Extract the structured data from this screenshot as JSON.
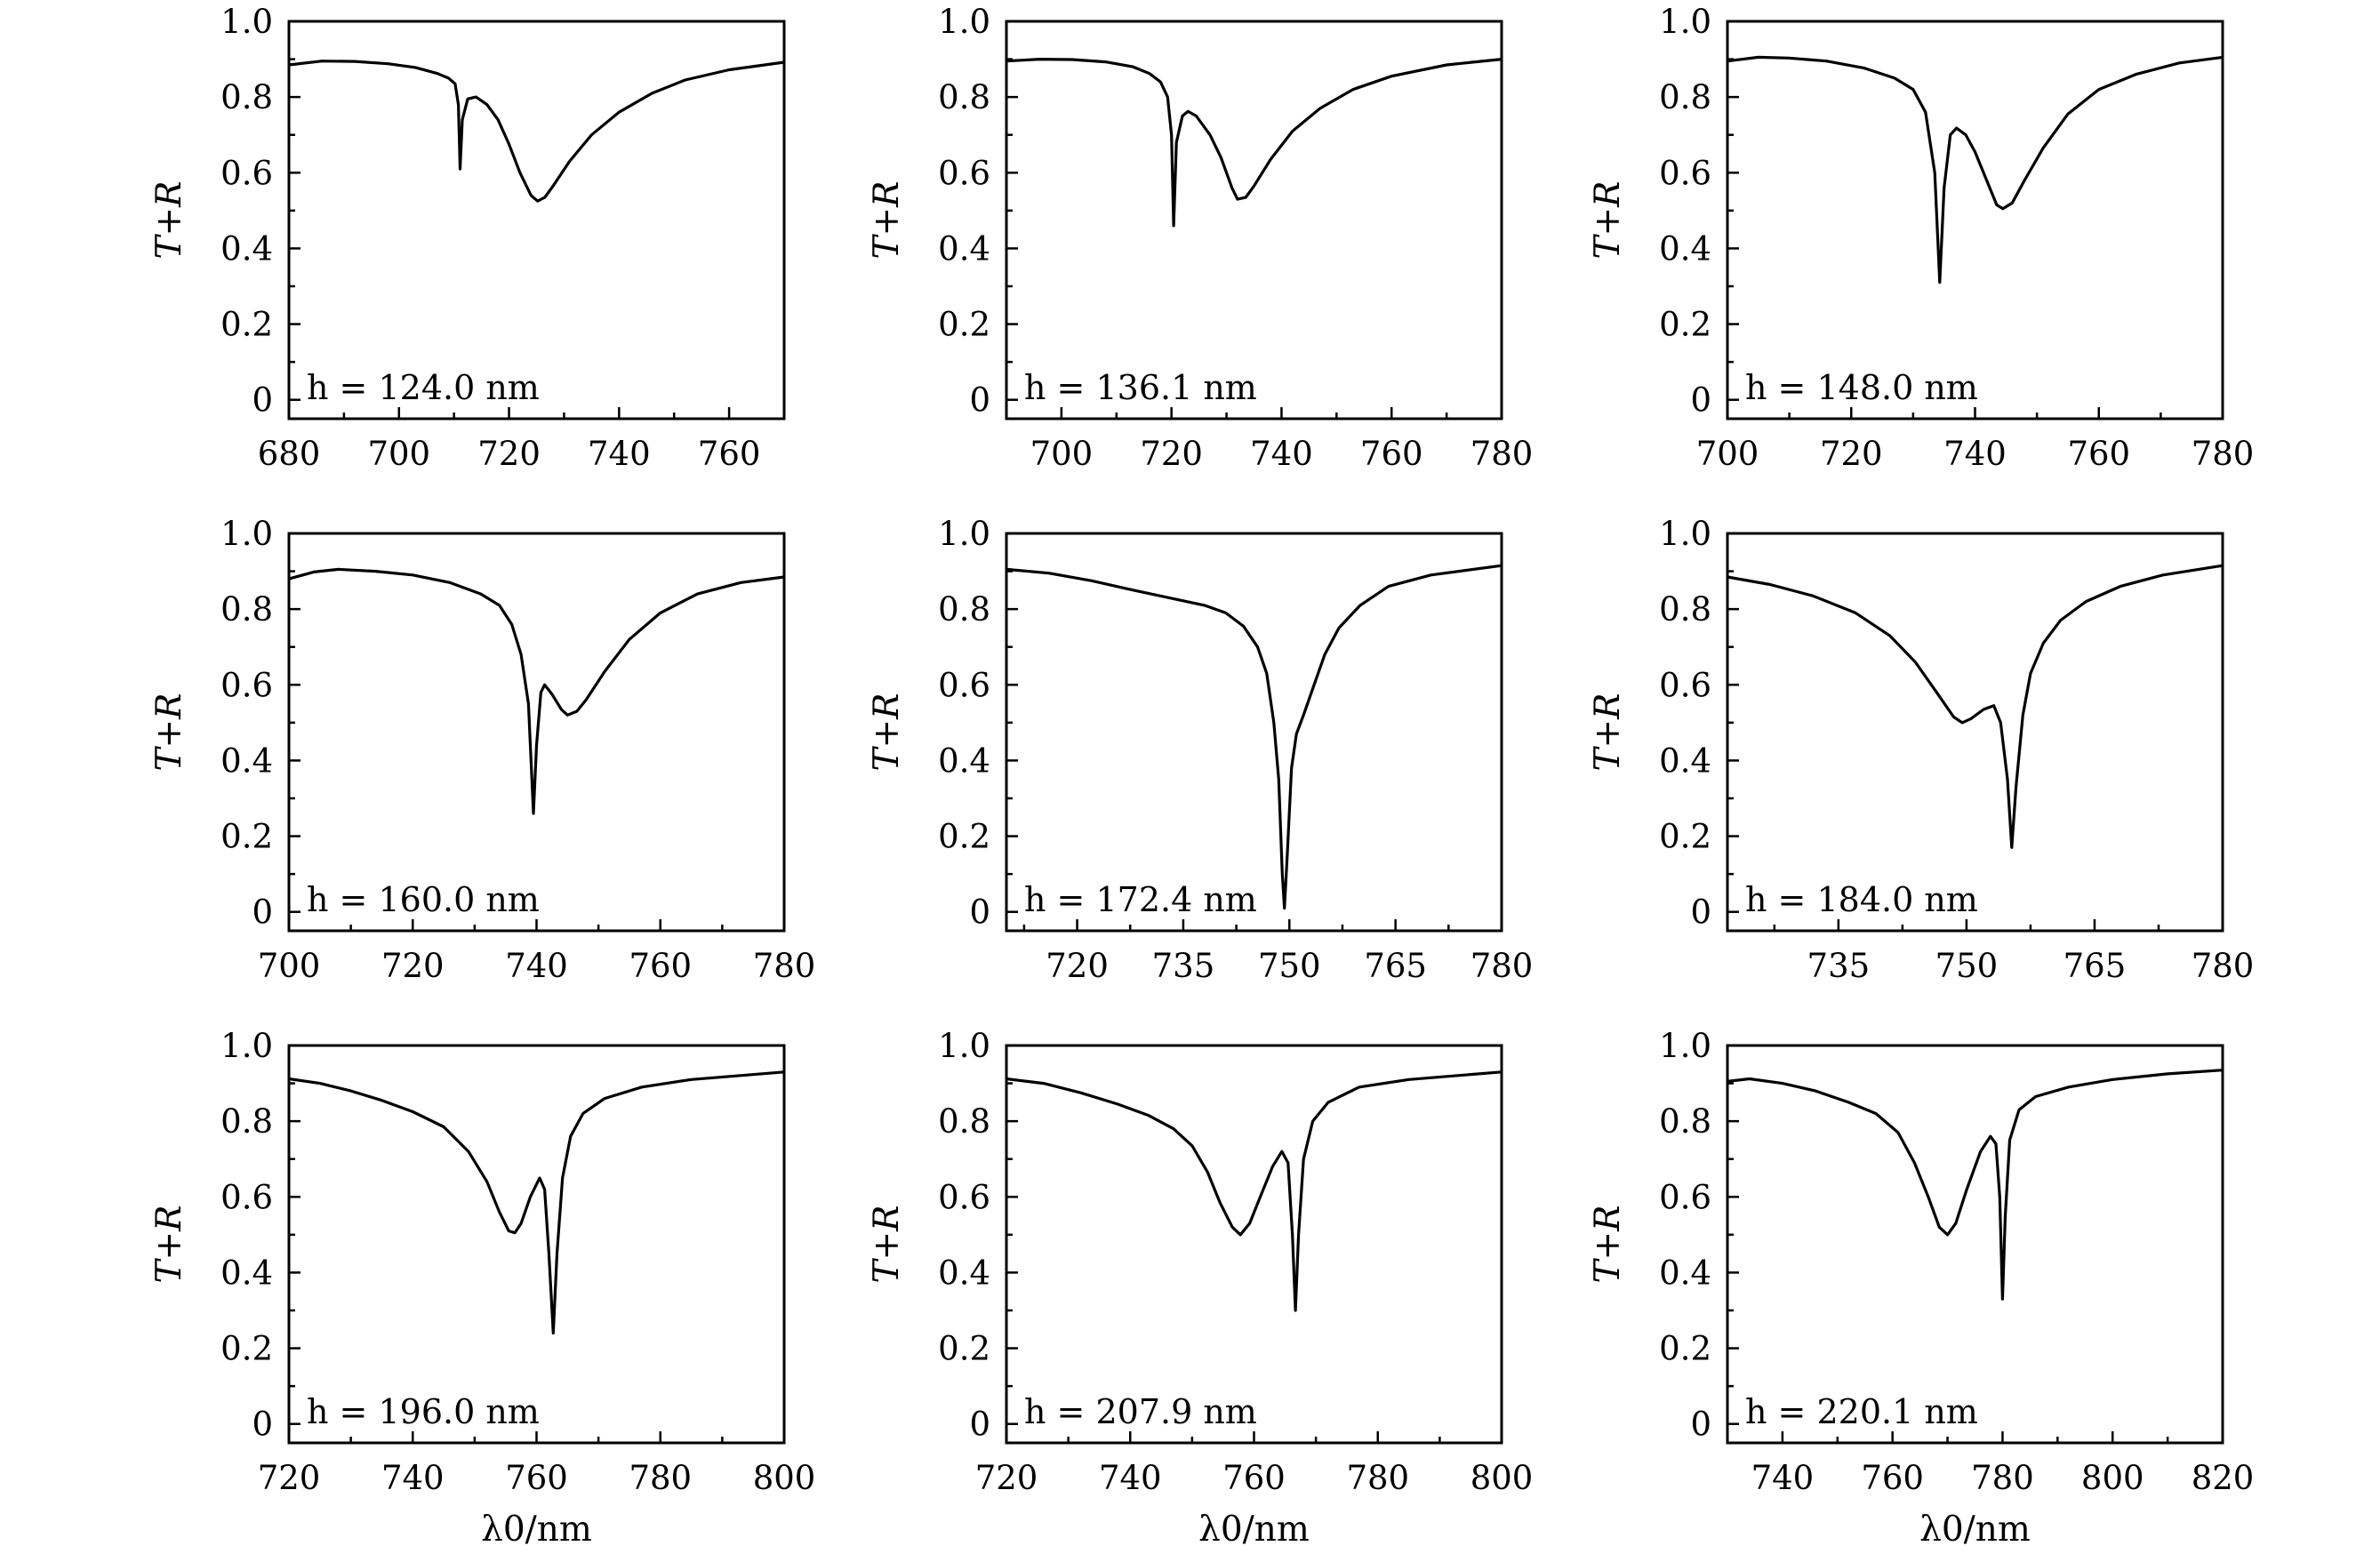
{
  "chart_data": [
    {
      "type": "line",
      "annotation": "h = 124.0 nm",
      "ylabel": "T+R",
      "xlabel": "",
      "xlim": [
        680,
        770
      ],
      "ylim": [
        -0.05,
        1.0
      ],
      "xticks": [
        680,
        700,
        720,
        740,
        760
      ],
      "yticks": [
        0,
        0.2,
        0.4,
        0.6,
        0.8,
        1.0
      ],
      "ytick_labels": [
        "0",
        "0.2",
        "0.4",
        "0.6",
        "0.8",
        "1.0"
      ],
      "points": [
        [
          680,
          0.885
        ],
        [
          686,
          0.895
        ],
        [
          692,
          0.894
        ],
        [
          698,
          0.888
        ],
        [
          703,
          0.878
        ],
        [
          707,
          0.862
        ],
        [
          709,
          0.85
        ],
        [
          710.2,
          0.835
        ],
        [
          710.8,
          0.78
        ],
        [
          711.1,
          0.61
        ],
        [
          711.5,
          0.74
        ],
        [
          712.5,
          0.795
        ],
        [
          714,
          0.8
        ],
        [
          716,
          0.78
        ],
        [
          718,
          0.74
        ],
        [
          720,
          0.675
        ],
        [
          722,
          0.6
        ],
        [
          724,
          0.54
        ],
        [
          725.2,
          0.525
        ],
        [
          726.5,
          0.535
        ],
        [
          728,
          0.565
        ],
        [
          731,
          0.63
        ],
        [
          735,
          0.7
        ],
        [
          740,
          0.76
        ],
        [
          746,
          0.81
        ],
        [
          752,
          0.845
        ],
        [
          760,
          0.872
        ],
        [
          770,
          0.892
        ]
      ]
    },
    {
      "type": "line",
      "annotation": "h = 136.1 nm",
      "ylabel": "T+R",
      "xlabel": "",
      "xlim": [
        690,
        780
      ],
      "ylim": [
        -0.05,
        1.0
      ],
      "xticks": [
        700,
        720,
        740,
        760,
        780
      ],
      "yticks": [
        0,
        0.2,
        0.4,
        0.6,
        0.8,
        1.0
      ],
      "ytick_labels": [
        "0",
        "0.2",
        "0.4",
        "0.6",
        "0.8",
        "1.0"
      ],
      "points": [
        [
          690,
          0.895
        ],
        [
          696,
          0.9
        ],
        [
          702,
          0.899
        ],
        [
          708,
          0.893
        ],
        [
          713,
          0.88
        ],
        [
          716,
          0.862
        ],
        [
          718,
          0.84
        ],
        [
          719.3,
          0.8
        ],
        [
          720,
          0.7
        ],
        [
          720.4,
          0.46
        ],
        [
          720.9,
          0.68
        ],
        [
          722,
          0.75
        ],
        [
          723,
          0.762
        ],
        [
          724.5,
          0.75
        ],
        [
          727,
          0.7
        ],
        [
          729,
          0.64
        ],
        [
          731,
          0.56
        ],
        [
          732,
          0.53
        ],
        [
          733.5,
          0.535
        ],
        [
          735,
          0.565
        ],
        [
          738,
          0.635
        ],
        [
          742,
          0.71
        ],
        [
          747,
          0.77
        ],
        [
          753,
          0.82
        ],
        [
          760,
          0.855
        ],
        [
          770,
          0.885
        ],
        [
          780,
          0.9
        ]
      ]
    },
    {
      "type": "line",
      "annotation": "h = 148.0 nm",
      "ylabel": "T+R",
      "xlabel": "",
      "xlim": [
        700,
        780
      ],
      "ylim": [
        -0.05,
        1.0
      ],
      "xticks": [
        700,
        720,
        740,
        760,
        780
      ],
      "yticks": [
        0,
        0.2,
        0.4,
        0.6,
        0.8,
        1.0
      ],
      "ytick_labels": [
        "0",
        "0.2",
        "0.4",
        "0.6",
        "0.8",
        "1.0"
      ],
      "points": [
        [
          700,
          0.895
        ],
        [
          705,
          0.905
        ],
        [
          710,
          0.903
        ],
        [
          716,
          0.895
        ],
        [
          722,
          0.877
        ],
        [
          727,
          0.85
        ],
        [
          730,
          0.82
        ],
        [
          732,
          0.76
        ],
        [
          733.5,
          0.6
        ],
        [
          734.3,
          0.31
        ],
        [
          735,
          0.56
        ],
        [
          736,
          0.7
        ],
        [
          737,
          0.718
        ],
        [
          738.5,
          0.7
        ],
        [
          740,
          0.655
        ],
        [
          742,
          0.575
        ],
        [
          743.5,
          0.515
        ],
        [
          744.5,
          0.505
        ],
        [
          746,
          0.52
        ],
        [
          748,
          0.58
        ],
        [
          751,
          0.665
        ],
        [
          755,
          0.755
        ],
        [
          760,
          0.82
        ],
        [
          766,
          0.86
        ],
        [
          773,
          0.89
        ],
        [
          780,
          0.905
        ]
      ]
    },
    {
      "type": "line",
      "annotation": "h = 160.0 nm",
      "ylabel": "T+R",
      "xlabel": "",
      "xlim": [
        700,
        780
      ],
      "ylim": [
        -0.05,
        1.0
      ],
      "xticks": [
        700,
        720,
        740,
        760,
        780
      ],
      "yticks": [
        0,
        0.2,
        0.4,
        0.6,
        0.8,
        1.0
      ],
      "ytick_labels": [
        "0",
        "0.2",
        "0.4",
        "0.6",
        "0.8",
        "1.0"
      ],
      "points": [
        [
          700,
          0.88
        ],
        [
          704,
          0.898
        ],
        [
          708,
          0.905
        ],
        [
          714,
          0.9
        ],
        [
          720,
          0.89
        ],
        [
          726,
          0.87
        ],
        [
          731,
          0.84
        ],
        [
          734,
          0.81
        ],
        [
          736,
          0.76
        ],
        [
          737.5,
          0.68
        ],
        [
          738.7,
          0.55
        ],
        [
          739.5,
          0.26
        ],
        [
          740,
          0.44
        ],
        [
          740.7,
          0.58
        ],
        [
          741.3,
          0.6
        ],
        [
          742.5,
          0.575
        ],
        [
          744,
          0.535
        ],
        [
          745,
          0.52
        ],
        [
          746.5,
          0.53
        ],
        [
          748,
          0.56
        ],
        [
          751,
          0.635
        ],
        [
          755,
          0.72
        ],
        [
          760,
          0.79
        ],
        [
          766,
          0.84
        ],
        [
          773,
          0.87
        ],
        [
          780,
          0.885
        ]
      ]
    },
    {
      "type": "line",
      "annotation": "h = 172.4 nm",
      "ylabel": "T+R",
      "xlabel": "",
      "xlim": [
        710,
        780
      ],
      "ylim": [
        -0.05,
        1.0
      ],
      "xticks": [
        720,
        735,
        750,
        765,
        780
      ],
      "yticks": [
        0,
        0.2,
        0.4,
        0.6,
        0.8,
        1.0
      ],
      "ytick_labels": [
        "0",
        "0.2",
        "0.4",
        "0.6",
        "0.8",
        "1.0"
      ],
      "points": [
        [
          710,
          0.905
        ],
        [
          716,
          0.895
        ],
        [
          722,
          0.875
        ],
        [
          728,
          0.85
        ],
        [
          733,
          0.83
        ],
        [
          738,
          0.81
        ],
        [
          741,
          0.79
        ],
        [
          743.5,
          0.755
        ],
        [
          745.5,
          0.7
        ],
        [
          746.8,
          0.63
        ],
        [
          747.8,
          0.5
        ],
        [
          748.5,
          0.35
        ],
        [
          749,
          0.1
        ],
        [
          749.3,
          0.01
        ],
        [
          749.7,
          0.15
        ],
        [
          750.3,
          0.38
        ],
        [
          751,
          0.47
        ],
        [
          752,
          0.52
        ],
        [
          753.5,
          0.6
        ],
        [
          755,
          0.68
        ],
        [
          757,
          0.75
        ],
        [
          760,
          0.81
        ],
        [
          764,
          0.86
        ],
        [
          770,
          0.89
        ],
        [
          780,
          0.915
        ]
      ]
    },
    {
      "type": "line",
      "annotation": "h = 184.0 nm",
      "ylabel": "T+R",
      "xlabel": "",
      "xlim": [
        722,
        780
      ],
      "ylim": [
        -0.05,
        1.0
      ],
      "xticks": [
        735,
        750,
        765,
        780
      ],
      "yticks": [
        0,
        0.2,
        0.4,
        0.6,
        0.8,
        1.0
      ],
      "ytick_labels": [
        "0",
        "0.2",
        "0.4",
        "0.6",
        "0.8",
        "1.0"
      ],
      "points": [
        [
          722,
          0.885
        ],
        [
          727,
          0.865
        ],
        [
          732,
          0.835
        ],
        [
          737,
          0.79
        ],
        [
          741,
          0.73
        ],
        [
          744,
          0.66
        ],
        [
          746.5,
          0.58
        ],
        [
          748.5,
          0.515
        ],
        [
          749.5,
          0.5
        ],
        [
          750.5,
          0.51
        ],
        [
          752,
          0.535
        ],
        [
          753.2,
          0.545
        ],
        [
          754,
          0.5
        ],
        [
          754.8,
          0.35
        ],
        [
          755.3,
          0.17
        ],
        [
          755.8,
          0.33
        ],
        [
          756.6,
          0.52
        ],
        [
          757.5,
          0.63
        ],
        [
          759,
          0.71
        ],
        [
          761,
          0.77
        ],
        [
          764,
          0.82
        ],
        [
          768,
          0.86
        ],
        [
          773,
          0.89
        ],
        [
          780,
          0.915
        ]
      ]
    },
    {
      "type": "line",
      "annotation": "h = 196.0 nm",
      "ylabel": "T+R",
      "xlabel": "λ0/nm",
      "xlim": [
        720,
        800
      ],
      "ylim": [
        -0.05,
        1.0
      ],
      "xticks": [
        720,
        740,
        760,
        780,
        800
      ],
      "yticks": [
        0,
        0.2,
        0.4,
        0.6,
        0.8,
        1.0
      ],
      "ytick_labels": [
        "0",
        "0.2",
        "0.4",
        "0.6",
        "0.8",
        "1.0"
      ],
      "points": [
        [
          720,
          0.912
        ],
        [
          725,
          0.9
        ],
        [
          730,
          0.88
        ],
        [
          735,
          0.855
        ],
        [
          740,
          0.825
        ],
        [
          745,
          0.785
        ],
        [
          749,
          0.72
        ],
        [
          752,
          0.64
        ],
        [
          754,
          0.56
        ],
        [
          755.5,
          0.51
        ],
        [
          756.5,
          0.505
        ],
        [
          757.5,
          0.53
        ],
        [
          759,
          0.6
        ],
        [
          760.5,
          0.65
        ],
        [
          761.3,
          0.62
        ],
        [
          762,
          0.45
        ],
        [
          762.7,
          0.24
        ],
        [
          763.3,
          0.45
        ],
        [
          764.2,
          0.65
        ],
        [
          765.5,
          0.76
        ],
        [
          767.5,
          0.82
        ],
        [
          771,
          0.86
        ],
        [
          777,
          0.89
        ],
        [
          785,
          0.91
        ],
        [
          800,
          0.93
        ]
      ]
    },
    {
      "type": "line",
      "annotation": "h = 207.9 nm",
      "ylabel": "T+R",
      "xlabel": "λ0/nm",
      "xlim": [
        720,
        800
      ],
      "ylim": [
        -0.05,
        1.0
      ],
      "xticks": [
        720,
        740,
        760,
        780,
        800
      ],
      "yticks": [
        0,
        0.2,
        0.4,
        0.6,
        0.8,
        1.0
      ],
      "ytick_labels": [
        "0",
        "0.2",
        "0.4",
        "0.6",
        "0.8",
        "1.0"
      ],
      "points": [
        [
          720,
          0.912
        ],
        [
          726,
          0.9
        ],
        [
          732,
          0.875
        ],
        [
          738,
          0.845
        ],
        [
          743,
          0.815
        ],
        [
          747,
          0.78
        ],
        [
          750,
          0.735
        ],
        [
          752.5,
          0.665
        ],
        [
          754.5,
          0.585
        ],
        [
          756.5,
          0.52
        ],
        [
          757.8,
          0.5
        ],
        [
          759.3,
          0.53
        ],
        [
          761,
          0.6
        ],
        [
          763,
          0.68
        ],
        [
          764.5,
          0.72
        ],
        [
          765.5,
          0.69
        ],
        [
          766.2,
          0.5
        ],
        [
          766.7,
          0.3
        ],
        [
          767.2,
          0.5
        ],
        [
          768,
          0.7
        ],
        [
          769.5,
          0.8
        ],
        [
          772,
          0.85
        ],
        [
          777,
          0.89
        ],
        [
          785,
          0.91
        ],
        [
          800,
          0.93
        ]
      ]
    },
    {
      "type": "line",
      "annotation": "h = 220.1 nm",
      "ylabel": "T+R",
      "xlabel": "λ0/nm",
      "xlim": [
        730,
        820
      ],
      "ylim": [
        -0.05,
        1.0
      ],
      "xticks": [
        740,
        760,
        780,
        800,
        820
      ],
      "yticks": [
        0,
        0.2,
        0.4,
        0.6,
        0.8,
        1.0
      ],
      "ytick_labels": [
        "0",
        "0.2",
        "0.4",
        "0.6",
        "0.8",
        "1.0"
      ],
      "points": [
        [
          730,
          0.905
        ],
        [
          734,
          0.912
        ],
        [
          740,
          0.9
        ],
        [
          746,
          0.88
        ],
        [
          752,
          0.85
        ],
        [
          757,
          0.82
        ],
        [
          761,
          0.77
        ],
        [
          764,
          0.69
        ],
        [
          766.5,
          0.6
        ],
        [
          768.5,
          0.52
        ],
        [
          770,
          0.5
        ],
        [
          771.5,
          0.53
        ],
        [
          773.5,
          0.62
        ],
        [
          776,
          0.72
        ],
        [
          777.8,
          0.76
        ],
        [
          778.8,
          0.74
        ],
        [
          779.5,
          0.6
        ],
        [
          780,
          0.33
        ],
        [
          780.5,
          0.55
        ],
        [
          781.3,
          0.75
        ],
        [
          783,
          0.83
        ],
        [
          786,
          0.865
        ],
        [
          792,
          0.89
        ],
        [
          800,
          0.91
        ],
        [
          810,
          0.925
        ],
        [
          820,
          0.935
        ]
      ]
    }
  ]
}
